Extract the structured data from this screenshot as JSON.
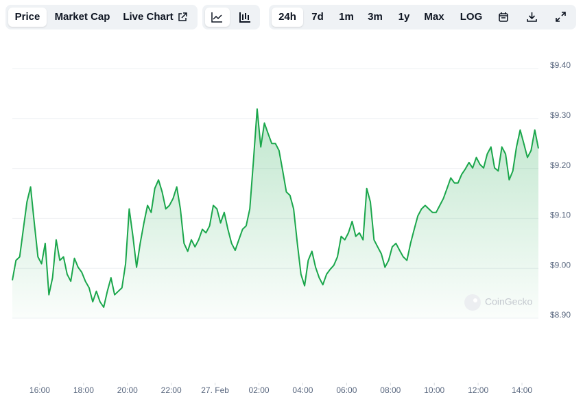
{
  "toolbar": {
    "views": [
      "Price",
      "Market Cap",
      "Live Chart"
    ],
    "active_view": 0,
    "ranges": [
      "24h",
      "7d",
      "1m",
      "3m",
      "1y",
      "Max",
      "LOG"
    ],
    "active_range": 0
  },
  "watermark": "CoinGecko",
  "chart_data": {
    "type": "line",
    "color": "#1aa64b",
    "grid": true,
    "xlim": [
      885,
      2325
    ],
    "ylim": [
      8.9,
      9.4
    ],
    "xticks": [
      {
        "value": 960,
        "label": "16:00"
      },
      {
        "value": 1080,
        "label": "18:00"
      },
      {
        "value": 1200,
        "label": "20:00"
      },
      {
        "value": 1320,
        "label": "22:00"
      },
      {
        "value": 1440,
        "label": "27. Feb"
      },
      {
        "value": 1560,
        "label": "02:00"
      },
      {
        "value": 1680,
        "label": "04:00"
      },
      {
        "value": 1800,
        "label": "06:00"
      },
      {
        "value": 1920,
        "label": "08:00"
      },
      {
        "value": 2040,
        "label": "10:00"
      },
      {
        "value": 2160,
        "label": "12:00"
      },
      {
        "value": 2280,
        "label": "14:00"
      }
    ],
    "yticks": [
      {
        "value": 8.9,
        "label": "$8.90"
      },
      {
        "value": 9.0,
        "label": "$9.00"
      },
      {
        "value": 9.1,
        "label": "$9.10"
      },
      {
        "value": 9.2,
        "label": "$9.20"
      },
      {
        "value": 9.3,
        "label": "$9.30"
      },
      {
        "value": 9.4,
        "label": "$9.40"
      }
    ],
    "x": [
      885,
      895,
      905,
      915,
      925,
      935,
      945,
      955,
      965,
      975,
      985,
      995,
      1005,
      1015,
      1025,
      1035,
      1045,
      1055,
      1065,
      1075,
      1085,
      1095,
      1105,
      1115,
      1125,
      1135,
      1145,
      1155,
      1165,
      1175,
      1185,
      1195,
      1205,
      1215,
      1225,
      1235,
      1245,
      1255,
      1265,
      1275,
      1285,
      1295,
      1305,
      1315,
      1325,
      1335,
      1345,
      1355,
      1365,
      1375,
      1385,
      1395,
      1405,
      1415,
      1425,
      1435,
      1445,
      1455,
      1465,
      1475,
      1485,
      1495,
      1505,
      1515,
      1525,
      1535,
      1545,
      1555,
      1565,
      1575,
      1585,
      1595,
      1605,
      1615,
      1625,
      1635,
      1645,
      1655,
      1665,
      1675,
      1685,
      1695,
      1705,
      1715,
      1725,
      1735,
      1745,
      1755,
      1765,
      1775,
      1785,
      1795,
      1805,
      1815,
      1825,
      1835,
      1845,
      1855,
      1865,
      1875,
      1885,
      1895,
      1905,
      1915,
      1925,
      1935,
      1945,
      1955,
      1965,
      1975,
      1985,
      1995,
      2005,
      2015,
      2025,
      2035,
      2045,
      2055,
      2065,
      2075,
      2085,
      2095,
      2105,
      2115,
      2125,
      2135,
      2145,
      2155,
      2165,
      2175,
      2185,
      2195,
      2205,
      2215,
      2225,
      2235,
      2245,
      2255,
      2265,
      2275,
      2285,
      2295,
      2305,
      2315,
      2325
    ],
    "values": [
      8.976,
      9.016,
      9.023,
      9.078,
      9.133,
      9.163,
      9.091,
      9.023,
      9.009,
      9.05,
      8.947,
      8.981,
      9.057,
      9.016,
      9.023,
      8.988,
      8.974,
      9.02,
      9.002,
      8.992,
      8.974,
      8.961,
      8.933,
      8.954,
      8.933,
      8.922,
      8.954,
      8.981,
      8.947,
      8.954,
      8.961,
      9.009,
      9.119,
      9.064,
      9.002,
      9.05,
      9.091,
      9.126,
      9.112,
      9.16,
      9.177,
      9.153,
      9.119,
      9.126,
      9.14,
      9.163,
      9.119,
      9.05,
      9.034,
      9.057,
      9.043,
      9.057,
      9.078,
      9.071,
      9.085,
      9.126,
      9.119,
      9.091,
      9.112,
      9.078,
      9.05,
      9.036,
      9.057,
      9.078,
      9.085,
      9.119,
      9.215,
      9.319,
      9.243,
      9.291,
      9.27,
      9.25,
      9.25,
      9.236,
      9.195,
      9.153,
      9.146,
      9.119,
      9.05,
      8.988,
      8.965,
      9.016,
      9.034,
      9.002,
      8.981,
      8.967,
      8.988,
      8.998,
      9.006,
      9.023,
      9.064,
      9.057,
      9.071,
      9.094,
      9.064,
      9.071,
      9.057,
      9.16,
      9.133,
      9.057,
      9.043,
      9.029,
      9.002,
      9.016,
      9.043,
      9.05,
      9.036,
      9.023,
      9.016,
      9.05,
      9.078,
      9.105,
      9.119,
      9.126,
      9.119,
      9.112,
      9.112,
      9.126,
      9.14,
      9.16,
      9.181,
      9.171,
      9.171,
      9.188,
      9.199,
      9.212,
      9.201,
      9.222,
      9.208,
      9.201,
      9.229,
      9.243,
      9.201,
      9.195,
      9.243,
      9.229,
      9.177,
      9.195,
      9.243,
      9.277,
      9.25,
      9.222,
      9.236,
      9.277,
      9.24
    ]
  }
}
